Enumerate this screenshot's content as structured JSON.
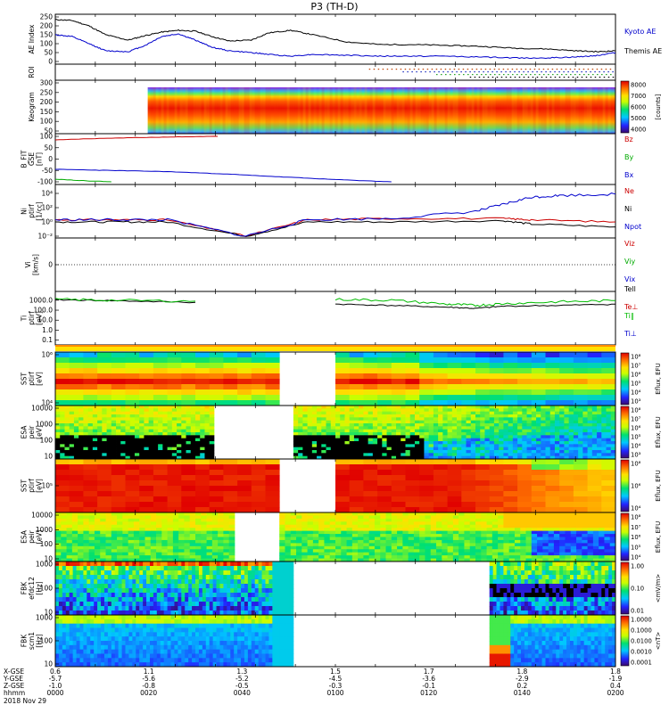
{
  "chart_data": {
    "type": "multi-panel",
    "title": "P3 (TH-D)",
    "panels": [
      {
        "type": "line",
        "ylabel": "AE Index",
        "yticks": [
          "250",
          "200",
          "150",
          "100",
          "50",
          "0"
        ],
        "ylim": [
          0,
          250
        ],
        "series": [
          {
            "name": "Kyoto AE",
            "color": "#000000",
            "x": [
              0,
              0.03,
              0.06,
              0.09,
              0.13,
              0.16,
              0.19,
              0.22,
              0.25,
              0.28,
              0.31,
              0.35,
              0.38,
              0.42,
              0.46,
              0.52,
              0.58,
              0.64,
              0.7,
              0.76,
              0.82,
              0.88,
              0.93,
              0.97,
              1.0
            ],
            "values": [
              235,
              230,
              200,
              150,
              120,
              145,
              165,
              175,
              170,
              140,
              115,
              120,
              160,
              175,
              150,
              110,
              95,
              95,
              90,
              85,
              75,
              70,
              60,
              55,
              60
            ]
          },
          {
            "name": "Themis AE",
            "color": "#0000cc",
            "x": [
              0,
              0.03,
              0.06,
              0.09,
              0.13,
              0.16,
              0.19,
              0.22,
              0.25,
              0.28,
              0.31,
              0.35,
              0.38,
              0.42,
              0.46,
              0.52,
              0.58,
              0.64,
              0.7,
              0.76,
              0.82,
              0.88,
              0.93,
              0.97,
              1.0
            ],
            "values": [
              150,
              140,
              100,
              60,
              55,
              90,
              140,
              155,
              120,
              80,
              60,
              50,
              40,
              30,
              40,
              35,
              30,
              30,
              30,
              25,
              20,
              20,
              25,
              35,
              50
            ]
          }
        ]
      },
      {
        "type": "events",
        "ylabel": "ROI"
      },
      {
        "type": "heatmap",
        "ylabel": "Keogram",
        "yticks": [
          "300",
          "250",
          "200",
          "150",
          "100",
          "50"
        ],
        "colorbar": {
          "label": "[counts]",
          "ticks": [
            "8000",
            "7000",
            "6000",
            "5000",
            "4000"
          ]
        }
      },
      {
        "type": "line",
        "ylabel": "B_FIT",
        "ylabel2": "GSE",
        "ylabel3": "[nT]",
        "yticks": [
          "100",
          "50",
          "0",
          "-50",
          "-100"
        ],
        "ylim": [
          -100,
          100
        ],
        "series": [
          {
            "name": "Bz",
            "color": "#cc0000",
            "x": [
              0,
              0.1,
              0.2,
              0.29
            ],
            "values": [
              85,
              92,
              97,
              100
            ]
          },
          {
            "name": "By",
            "color": "#00aa00",
            "x": [
              0,
              0.05,
              0.1
            ],
            "values": [
              -88,
              -95,
              -100
            ]
          },
          {
            "name": "Bx",
            "color": "#0000cc",
            "x": [
              0,
              0.1,
              0.2,
              0.3,
              0.4,
              0.5,
              0.6
            ],
            "values": [
              -45,
              -50,
              -55,
              -65,
              -78,
              -90,
              -100
            ]
          }
        ]
      },
      {
        "type": "line",
        "ylabel": "Ni",
        "ylabel2": "ptirf",
        "ylabel3": "[1/cc]",
        "yticks": [
          "10⁴",
          "10²",
          "10⁰",
          "10⁻²"
        ],
        "log": true,
        "ylim": [
          0.01,
          100000
        ],
        "series": [
          {
            "name": "Ne",
            "color": "#cc0000",
            "x": [
              0,
              0.1,
              0.2,
              0.34,
              0.45,
              0.6,
              0.8,
              0.85,
              1.0
            ],
            "values": [
              2,
              2,
              2,
              0.01,
              2,
              3,
              3,
              2,
              1
            ]
          },
          {
            "name": "Ni",
            "color": "#000000",
            "x": [
              0,
              0.1,
              0.2,
              0.34,
              0.45,
              0.6,
              0.8,
              0.85,
              1.0
            ],
            "values": [
              1,
              1,
              1,
              0.01,
              1,
              1,
              1.5,
              0.5,
              0.2
            ]
          },
          {
            "name": "Npot",
            "color": "#0000cc",
            "x": [
              0,
              0.1,
              0.2,
              0.34,
              0.45,
              0.6,
              0.75,
              0.8,
              0.85,
              0.9,
              1.0
            ],
            "values": [
              2,
              2,
              2,
              0.01,
              2,
              3,
              30,
              300,
              3000,
              5000,
              8000
            ]
          }
        ]
      },
      {
        "type": "line",
        "ylabel": "Vi",
        "ylabel3": "[km/s]",
        "yticks": [
          "0"
        ],
        "series": [
          {
            "name": "Viz",
            "color": "#cc0000"
          },
          {
            "name": "Viy",
            "color": "#00aa00"
          },
          {
            "name": "Vix",
            "color": "#0000cc"
          }
        ]
      },
      {
        "type": "line",
        "ylabel": "Ti",
        "ylabel2": "ptirf",
        "ylabel3": "[eV]",
        "yticks": [
          "1000.0",
          "100.0",
          "10.0",
          "1.0",
          "0.1"
        ],
        "log": true,
        "ylim": [
          0.05,
          5000
        ],
        "series": [
          {
            "name": "Tell",
            "color": "#000000",
            "x": [
              0,
              0.1,
              0.25,
              0.4,
              0.5,
              0.6,
              0.7,
              0.75,
              0.8,
              0.9,
              1.0
            ],
            "values": [
              1100,
              900,
              600,
              null,
              400,
              300,
              200,
              150,
              250,
              300,
              400
            ]
          },
          {
            "name": "Te⊥",
            "color": "#cc0000"
          },
          {
            "name": "Ti‖",
            "color": "#00bb00",
            "x": [
              0,
              0.1,
              0.25,
              0.4,
              0.5,
              0.6,
              0.7,
              0.75,
              0.8,
              0.9,
              1.0
            ],
            "values": [
              1200,
              1000,
              800,
              null,
              1200,
              1000,
              400,
              300,
              450,
              700,
              900
            ]
          },
          {
            "name": "Ti⊥",
            "color": "#0000cc"
          }
        ]
      },
      {
        "type": "heatmap",
        "ylabel": "SST",
        "ylabel2": "ptirf",
        "ylabel3": "[eV]",
        "yticks": [
          "10⁶",
          "10⁴"
        ],
        "colorbar": {
          "label": "Eflux, EFU",
          "ticks": [
            "10⁸",
            "10⁷",
            "10⁶",
            "10⁵",
            "10⁴",
            "10³"
          ]
        }
      },
      {
        "type": "heatmap",
        "ylabel": "ESA",
        "ylabel2": "peir",
        "ylabel3": "[eV]",
        "yticks": [
          "10000",
          "1000",
          "100",
          "10"
        ],
        "colorbar": {
          "label": "Eflux, EFU",
          "ticks": [
            "10⁸",
            "10⁷",
            "10⁶",
            "10⁵",
            "10⁴",
            "10³"
          ]
        }
      },
      {
        "type": "heatmap",
        "ylabel": "SST",
        "ylabel2": "ptirf",
        "ylabel3": "[eV]",
        "yticks": [
          "10⁵"
        ],
        "colorbar": {
          "label": "Eflux, EFU",
          "ticks": [
            "10⁸",
            "10⁶",
            "10⁴"
          ]
        }
      },
      {
        "type": "heatmap",
        "ylabel": "ESA",
        "ylabel2": "peir",
        "ylabel3": "[eV]",
        "yticks": [
          "10000",
          "1000",
          "100",
          "10"
        ],
        "colorbar": {
          "label": "Eflux, EFU",
          "ticks": [
            "10⁸",
            "10⁷",
            "10⁶",
            "10⁵",
            "10⁴"
          ]
        }
      },
      {
        "type": "heatmap",
        "ylabel": "FBK",
        "ylabel2": "efdc12",
        "ylabel3": "[Hz]",
        "yticks": [
          "1000",
          "100",
          "10"
        ],
        "colorbar": {
          "label": "<mV/m>",
          "ticks": [
            "1.00",
            "0.10",
            "0.01"
          ]
        }
      },
      {
        "type": "heatmap",
        "ylabel": "FBK",
        "ylabel2": "scm1",
        "ylabel3": "[Hz]",
        "yticks": [
          "1000",
          "100",
          "10"
        ],
        "colorbar": {
          "label": "<nT>",
          "ticks": [
            "1.0000",
            "0.1000",
            "0.0100",
            "0.0010",
            "0.0001"
          ]
        }
      }
    ],
    "xaxis": {
      "row_labels": [
        "X-GSE",
        "Y-GSE",
        "Z-GSE",
        "hhmm",
        "2018 Nov 29"
      ],
      "columns": [
        [
          "0.6",
          "-5.7",
          "-1.0",
          "0000"
        ],
        [
          "1.1",
          "-5.6",
          "-0.8",
          "0020"
        ],
        [
          "1.3",
          "-5.2",
          "-0.5",
          "0040"
        ],
        [
          "1.5",
          "-4.5",
          "-0.3",
          "0100"
        ],
        [
          "1.7",
          "-3.6",
          "-0.1",
          "0120"
        ],
        [
          "1.8",
          "-2.9",
          "0.2",
          "0140"
        ],
        [
          "1.8",
          "-1.9",
          "0.4",
          "0200"
        ]
      ]
    }
  }
}
